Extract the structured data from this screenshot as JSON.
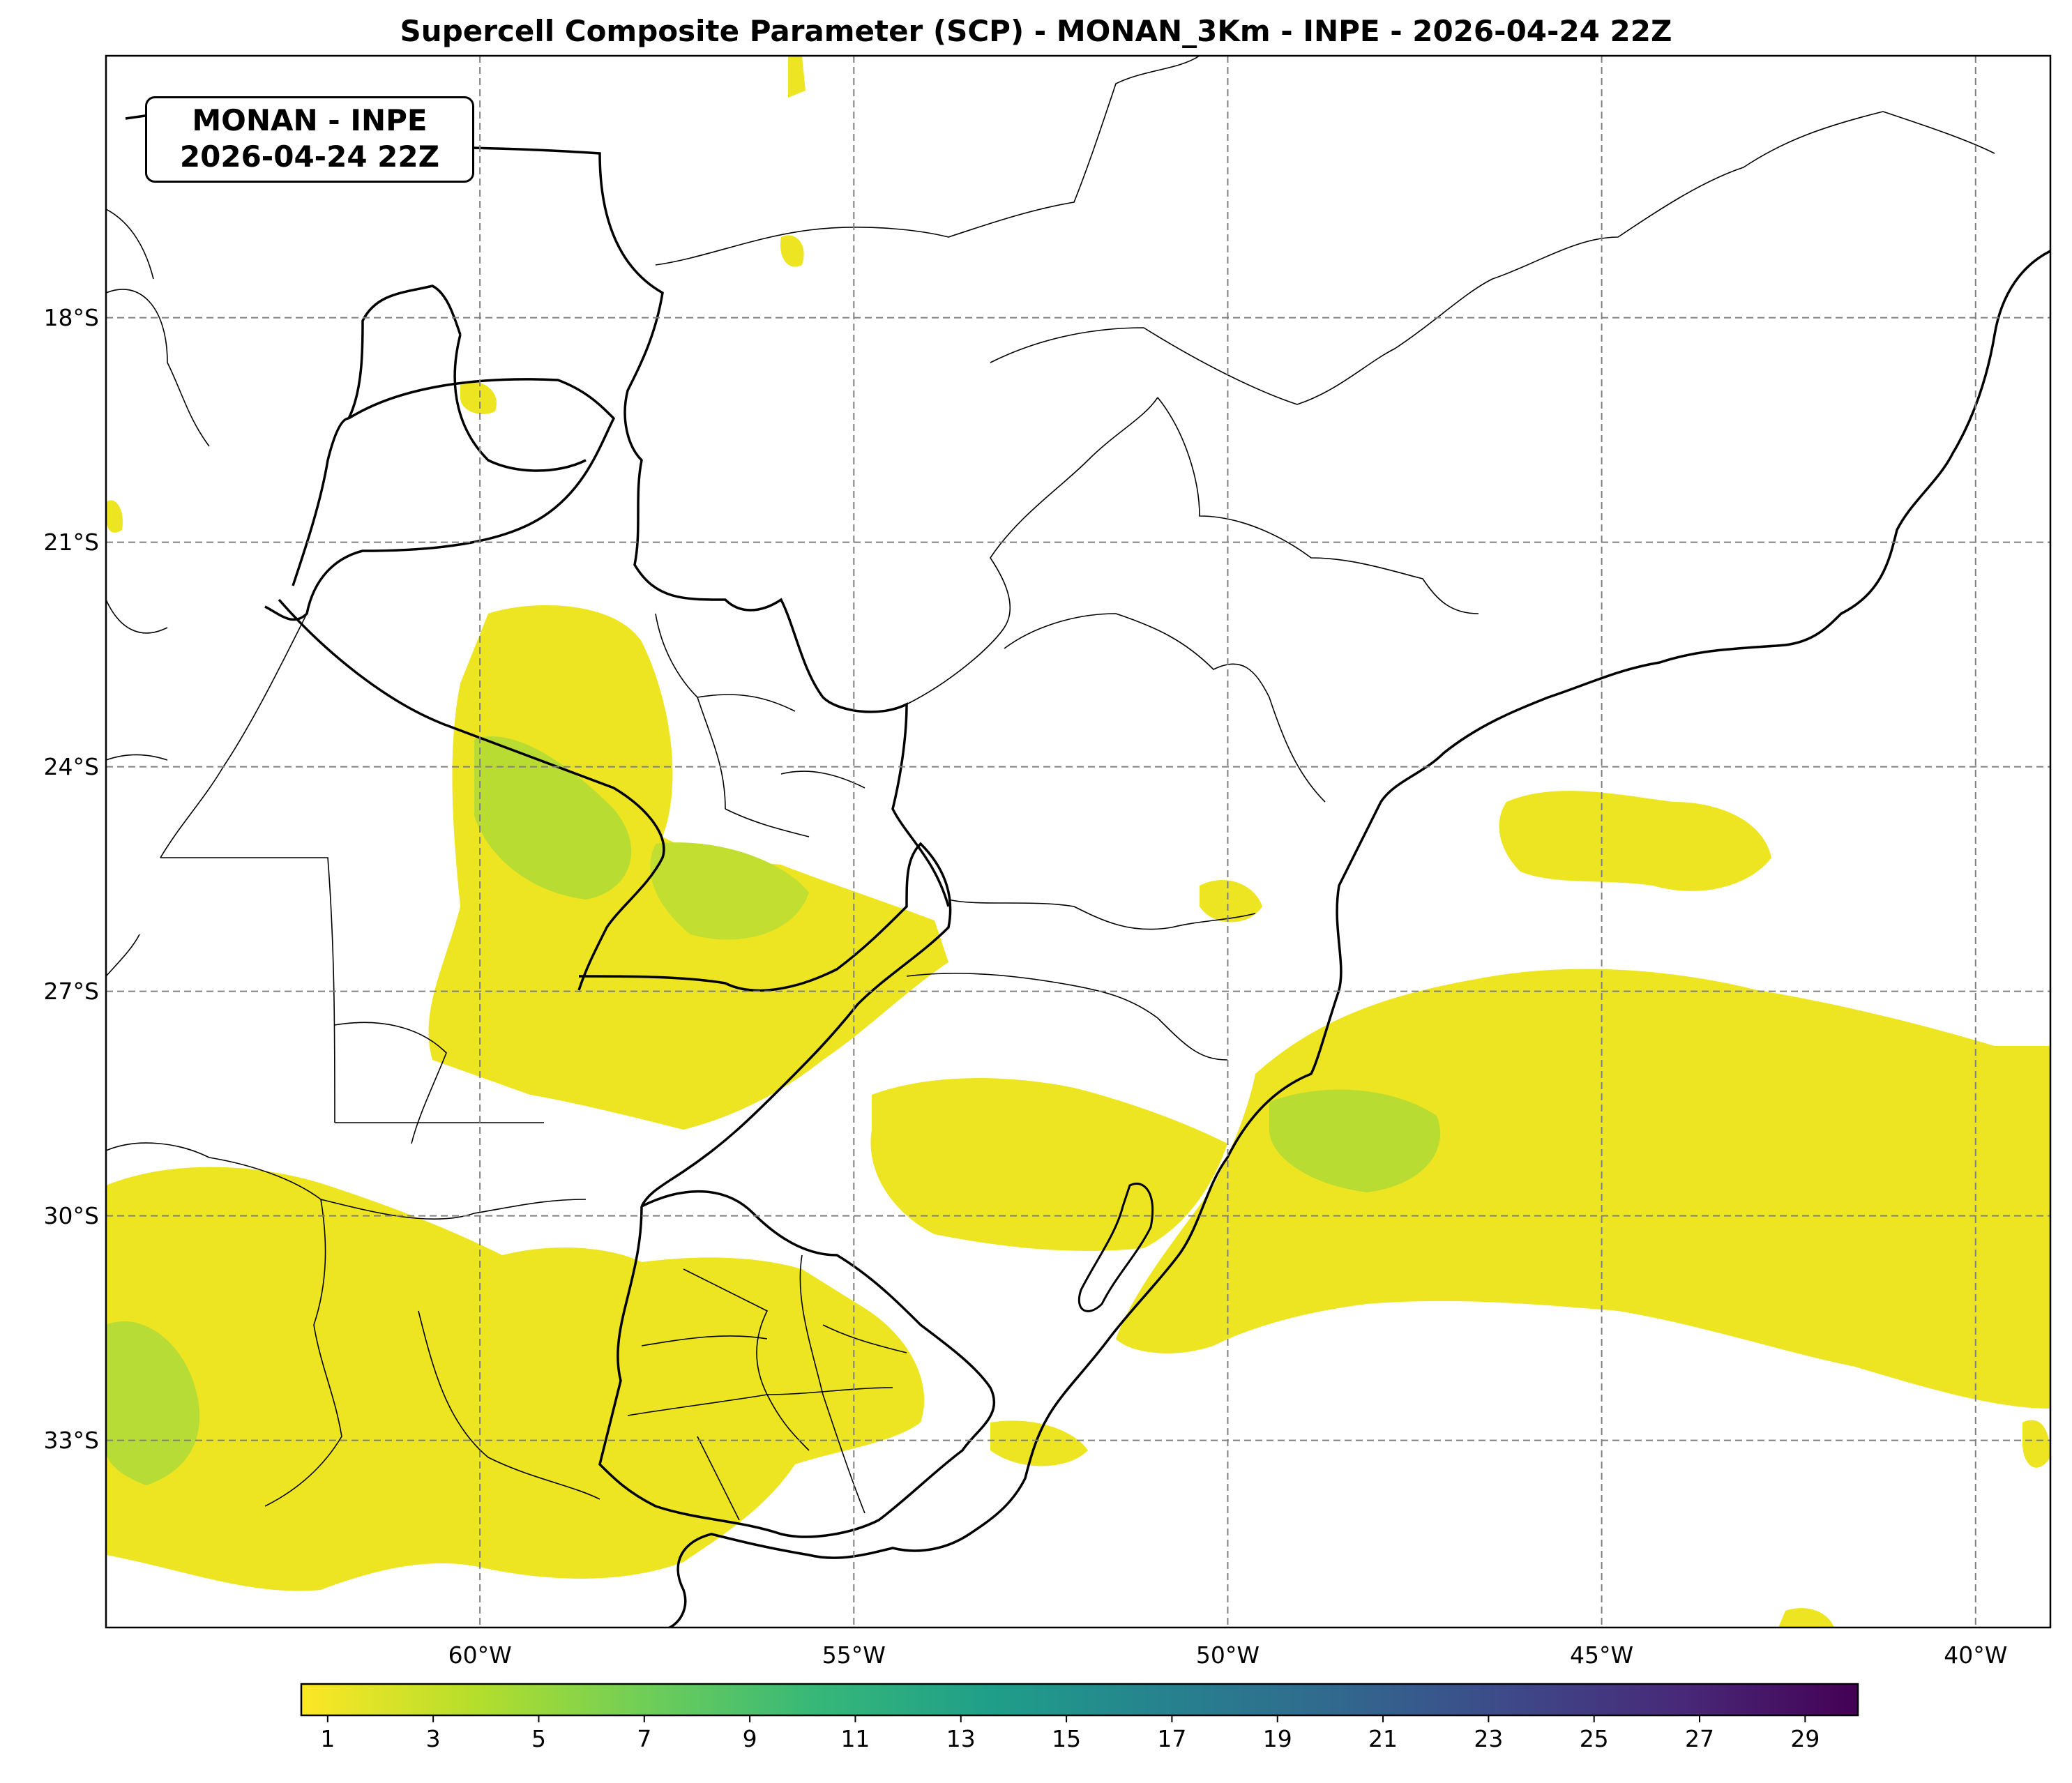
{
  "title": "Supercell Composite Parameter (SCP) - MONAN_3Km - INPE - 2026-04-24 22Z",
  "info_box": {
    "line1": "MONAN - INPE",
    "line2": "2026-04-24 22Z"
  },
  "map": {
    "extent": {
      "lon_min": -65,
      "lon_max": -39,
      "lat_min": -35.5,
      "lat_max": -14.5
    },
    "latitude_labels": [
      {
        "value": -18,
        "text": "18°S"
      },
      {
        "value": -21,
        "text": "21°S"
      },
      {
        "value": -24,
        "text": "24°S"
      },
      {
        "value": -27,
        "text": "27°S"
      },
      {
        "value": -30,
        "text": "30°S"
      },
      {
        "value": -33,
        "text": "33°S"
      }
    ],
    "longitude_labels": [
      {
        "value": -60,
        "text": "60°W"
      },
      {
        "value": -55,
        "text": "55°W"
      },
      {
        "value": -50,
        "text": "50°W"
      },
      {
        "value": -45,
        "text": "45°W"
      },
      {
        "value": -40,
        "text": "40°W"
      }
    ],
    "gridlines": "dashed",
    "field_colormap": "viridis_r",
    "field_color_low": "#f3e51e",
    "field_color_mid": "#a4d93a",
    "field_color_high": "#5ec962"
  },
  "colorbar": {
    "min": 0.5,
    "max": 30,
    "ticks": [
      "1",
      "3",
      "5",
      "7",
      "9",
      "11",
      "13",
      "15",
      "17",
      "19",
      "21",
      "23",
      "25",
      "27",
      "29"
    ],
    "stops": [
      "#fde725",
      "#b5de2b",
      "#6ece58",
      "#35b779",
      "#1f9e89",
      "#26828e",
      "#31688e",
      "#3e4989",
      "#482878",
      "#440154"
    ]
  }
}
